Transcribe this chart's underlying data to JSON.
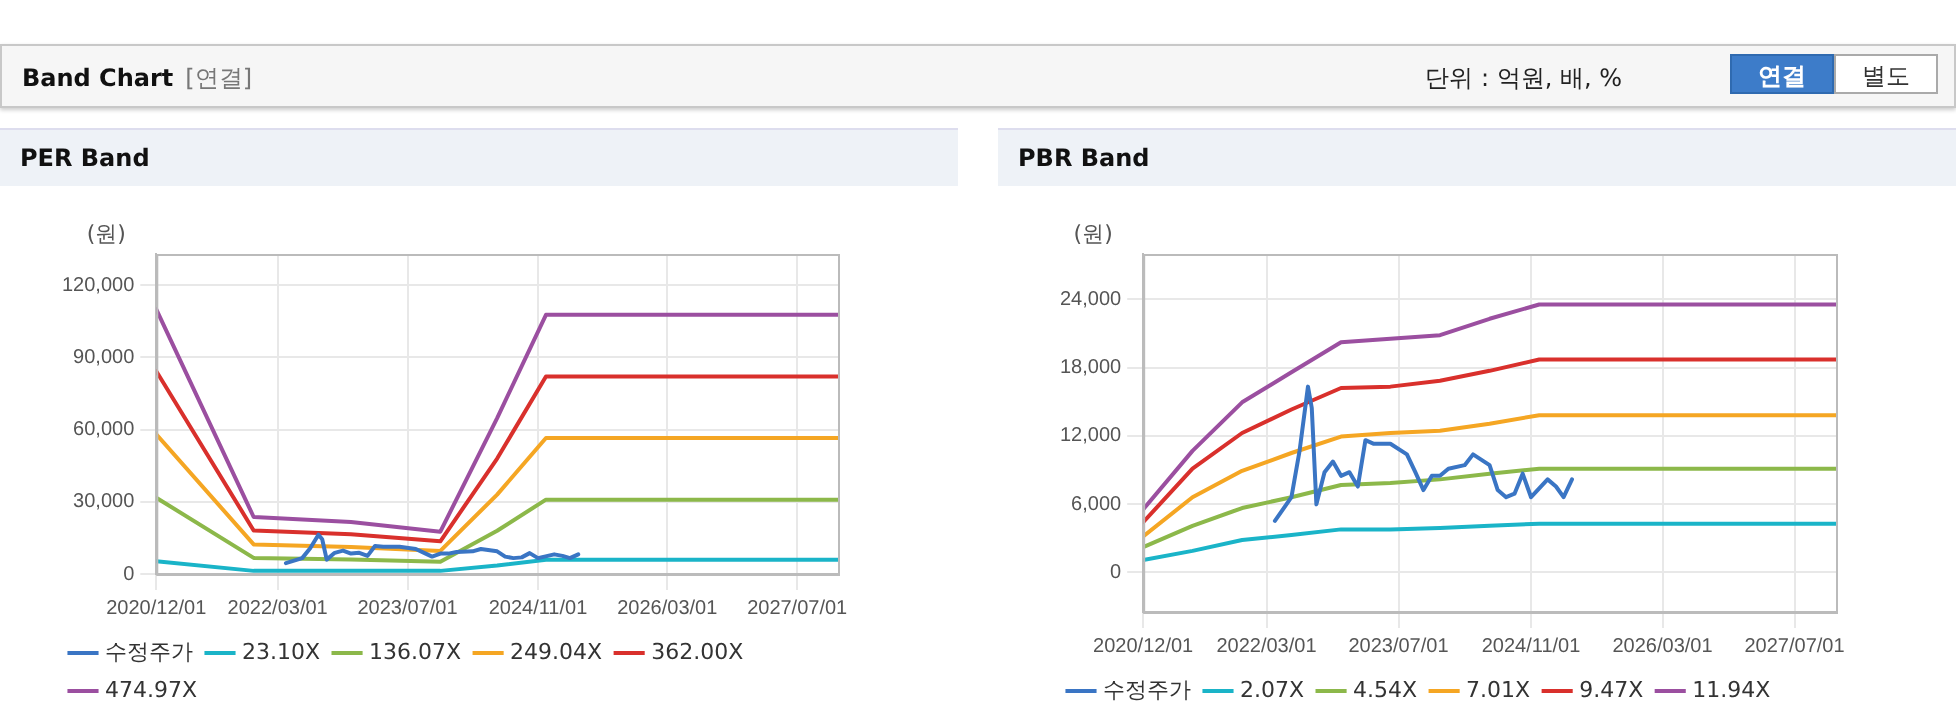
{
  "chart_data": [
    {
      "type": "other",
      "title": "Band Chart",
      "annotations": [
        "[연결]",
        "단위 : 억원, 배, %",
        "연결",
        "별도"
      ]
    },
    {
      "type": "line",
      "title": "PER Band",
      "ylabel": "(원)",
      "x": [
        "2020-12-01",
        "2021-12-01",
        "2022-12-01",
        "2023-11-01",
        "2024-06-01",
        "2024-12-01",
        "2027-12-01"
      ],
      "xlim": [
        "2020-12-01",
        "2027-12-01"
      ],
      "xticks": [
        {
          "value": "2020-12-01",
          "label": "2020/12/01"
        },
        {
          "value": "2022-03-01",
          "label": "2022/03/01"
        },
        {
          "value": "2023-07-01",
          "label": "2023/07/01"
        },
        {
          "value": "2024-11-01",
          "label": "2024/11/01"
        },
        {
          "value": "2026-03-01",
          "label": "2026/03/01"
        },
        {
          "value": "2027-07-01",
          "label": "2027/07/01"
        }
      ],
      "ylim": [
        0,
        133000
      ],
      "yticks": [
        0,
        {
          "value": 30000,
          "label": "30,000"
        },
        {
          "value": 60000,
          "label": "60,000"
        },
        {
          "value": 90000,
          "label": "90,000"
        },
        {
          "value": 120000,
          "label": "120,000"
        }
      ],
      "grid": true,
      "legend": "bottom",
      "marker": "none",
      "line_style": "solid",
      "series": [
        {
          "name": "수정주가",
          "color": "#3a75c4",
          "x": [
            "2022-04-01",
            "2022-06-01",
            "2022-07-01",
            "2022-08-01",
            "2022-08-15",
            "2022-09-01",
            "2022-10-01",
            "2022-11-01",
            "2022-12-01",
            "2023-01-01",
            "2023-02-01",
            "2023-03-01",
            "2023-04-01",
            "2023-06-01",
            "2023-08-01",
            "2023-09-01",
            "2023-10-01",
            "2023-11-01",
            "2023-12-01",
            "2024-01-01",
            "2024-03-01",
            "2024-04-01",
            "2024-06-01",
            "2024-07-01",
            "2024-08-01",
            "2024-09-01",
            "2024-10-01",
            "2024-11-01",
            "2025-01-01",
            "2025-02-01",
            "2025-03-01",
            "2025-04-01"
          ],
          "values": [
            4520,
            6600,
            10680,
            16330,
            14450,
            5970,
            8800,
            9740,
            8480,
            8800,
            7540,
            11620,
            11300,
            11300,
            10370,
            8800,
            7230,
            8480,
            8480,
            9110,
            9420,
            10370,
            9420,
            7230,
            6600,
            6910,
            8670,
            6600,
            8170,
            7540,
            6600,
            8170
          ]
        },
        {
          "name": "23.10X",
          "color": "#1ab4c8",
          "values": [
            5300,
            1300,
            1300,
            1300,
            3500,
            5900,
            5900
          ]
        },
        {
          "name": "136.07X",
          "color": "#8cb84a",
          "values": [
            31700,
            6700,
            6000,
            5100,
            18000,
            30900,
            30900
          ]
        },
        {
          "name": "249.04X",
          "color": "#f5a623",
          "values": [
            58100,
            12300,
            11200,
            9600,
            33000,
            56500,
            56500
          ]
        },
        {
          "name": "362.00X",
          "color": "#d9302c",
          "values": [
            84300,
            18100,
            16500,
            13600,
            48000,
            82100,
            82100
          ]
        },
        {
          "name": "474.97X",
          "color": "#9b4fa0",
          "values": [
            110000,
            23700,
            21600,
            17600,
            64800,
            107700,
            107700
          ]
        }
      ]
    },
    {
      "type": "line",
      "title": "PBR Band",
      "ylabel": "(원)",
      "x": [
        "2020-12-01",
        "2021-06-01",
        "2021-12-01",
        "2022-06-01",
        "2022-12-01",
        "2023-06-01",
        "2023-12-01",
        "2024-06-01",
        "2024-12-01",
        "2027-12-01"
      ],
      "xlim": [
        "2020-12-01",
        "2027-12-01"
      ],
      "xticks": [
        {
          "value": "2020-12-01",
          "label": "2020/12/01"
        },
        {
          "value": "2022-03-01",
          "label": "2022/03/01"
        },
        {
          "value": "2023-07-01",
          "label": "2023/07/01"
        },
        {
          "value": "2024-11-01",
          "label": "2024/11/01"
        },
        {
          "value": "2026-03-01",
          "label": "2026/03/01"
        },
        {
          "value": "2027-07-01",
          "label": "2027/07/01"
        }
      ],
      "ylim": [
        -3500,
        28000
      ],
      "yticks": [
        0,
        {
          "value": 6000,
          "label": "6,000"
        },
        {
          "value": 12000,
          "label": "12,000"
        },
        {
          "value": 18000,
          "label": "18,000"
        },
        {
          "value": 24000,
          "label": "24,000"
        }
      ],
      "grid": true,
      "legend": "bottom",
      "marker": "none",
      "line_style": "solid",
      "series": [
        {
          "name": "수정주가",
          "color": "#3a75c4",
          "x": [
            "2022-04-01",
            "2022-06-01",
            "2022-07-01",
            "2022-08-01",
            "2022-08-15",
            "2022-09-01",
            "2022-10-01",
            "2022-11-01",
            "2022-12-01",
            "2023-01-01",
            "2023-02-01",
            "2023-03-01",
            "2023-04-01",
            "2023-06-01",
            "2023-08-01",
            "2023-09-01",
            "2023-10-01",
            "2023-11-01",
            "2023-12-01",
            "2024-01-01",
            "2024-03-01",
            "2024-04-01",
            "2024-06-01",
            "2024-07-01",
            "2024-08-01",
            "2024-09-01",
            "2024-10-01",
            "2024-11-01",
            "2025-01-01",
            "2025-02-01",
            "2025-03-01",
            "2025-04-01"
          ],
          "values": [
            4520,
            6600,
            10680,
            16330,
            14450,
            5970,
            8800,
            9740,
            8480,
            8800,
            7540,
            11620,
            11300,
            11300,
            10370,
            8800,
            7230,
            8480,
            8480,
            9110,
            9420,
            10370,
            9420,
            7230,
            6600,
            6910,
            8670,
            6600,
            8170,
            7540,
            6600,
            8170
          ]
        },
        {
          "name": "2.07X",
          "color": "#1ab4c8",
          "values": [
            1070,
            1880,
            2830,
            3270,
            3770,
            3770,
            3900,
            4080,
            4270,
            4270
          ]
        },
        {
          "name": "4.54X",
          "color": "#8cb84a",
          "values": [
            2200,
            4080,
            5650,
            6600,
            7670,
            7850,
            8170,
            8670,
            9110,
            9110
          ]
        },
        {
          "name": "7.01X",
          "color": "#f5a623",
          "values": [
            3140,
            6600,
            8920,
            10490,
            11940,
            12250,
            12440,
            13070,
            13820,
            13820
          ]
        },
        {
          "name": "9.47X",
          "color": "#d9302c",
          "values": [
            4400,
            9110,
            12250,
            14320,
            16210,
            16330,
            16840,
            17720,
            18720,
            18720
          ]
        },
        {
          "name": "11.94X",
          "color": "#9b4fa0",
          "values": [
            5530,
            10680,
            14950,
            17590,
            20230,
            20540,
            20860,
            22300,
            23560,
            23560
          ]
        }
      ]
    }
  ]
}
